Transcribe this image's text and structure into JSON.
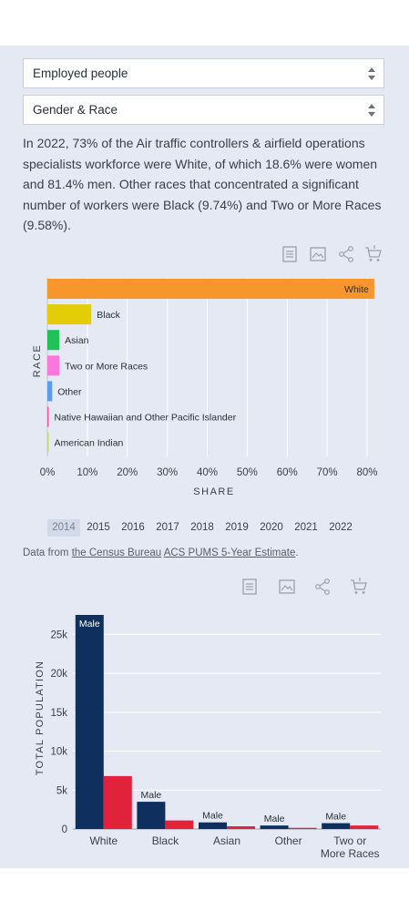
{
  "filters": {
    "measure": "Employed people",
    "dimension": "Gender & Race"
  },
  "description": "In 2022, 73% of the Air traffic controllers & airfield operations specialists workforce were White, of which 18.6% were women and 81.4% men. Other races that concentrated a significant number of workers were Black (9.74%) and Two or More Races (9.58%).",
  "toolbar_icons": [
    "table-icon",
    "image-icon",
    "share-icon",
    "cart-icon"
  ],
  "years": [
    "2014",
    "2015",
    "2016",
    "2017",
    "2018",
    "2019",
    "2020",
    "2021",
    "2022"
  ],
  "selected_year": "2014",
  "source": {
    "prefix": "Data from ",
    "link1": "the Census Bureau",
    "space": " ",
    "link2": "ACS PUMS 5-Year Estimate",
    "suffix": "."
  },
  "colors": {
    "White": "#f7962b",
    "Black": "#e3cd09",
    "Asian": "#20c157",
    "Two or More Races": "#fb77e0",
    "Other": "#5c9ced",
    "Native Hawaiian and Other Pacific Islander": "#e85aa4",
    "American Indian": "#c9d96c",
    "male": "#0f2f5e",
    "female": "#e0223a"
  },
  "chart_data": [
    {
      "type": "bar",
      "orientation": "horizontal",
      "categories": [
        "White",
        "Black",
        "Asian",
        "Two or More Races",
        "Other",
        "Native Hawaiian and Other Pacific Islander",
        "American Indian"
      ],
      "values": [
        81.8,
        11.0,
        3.0,
        3.0,
        1.2,
        0.3,
        0.2
      ],
      "xlabel": "SHARE",
      "ylabel": "RACE",
      "xlim": [
        0,
        80
      ],
      "xticks": [
        "0%",
        "10%",
        "20%",
        "30%",
        "40%",
        "50%",
        "60%",
        "70%",
        "80%"
      ],
      "grid": true
    },
    {
      "type": "bar",
      "categories": [
        "White",
        "Black",
        "Asian",
        "Other",
        "Two or More Races"
      ],
      "category_labels": [
        [
          "White"
        ],
        [
          "Black"
        ],
        [
          "Asian"
        ],
        [
          "Other"
        ],
        [
          "Two or",
          "More Races"
        ]
      ],
      "series": [
        {
          "name": "Male",
          "values": [
            27500,
            3500,
            850,
            450,
            750
          ]
        },
        {
          "name": "Female",
          "values": [
            6800,
            1100,
            350,
            150,
            450
          ]
        }
      ],
      "data_label": "Male",
      "ylabel": "TOTAL POPULATION",
      "ylim": [
        0,
        27500
      ],
      "yticks": [
        "0",
        "5k",
        "10k",
        "15k",
        "20k",
        "25k"
      ],
      "grid": true
    }
  ]
}
